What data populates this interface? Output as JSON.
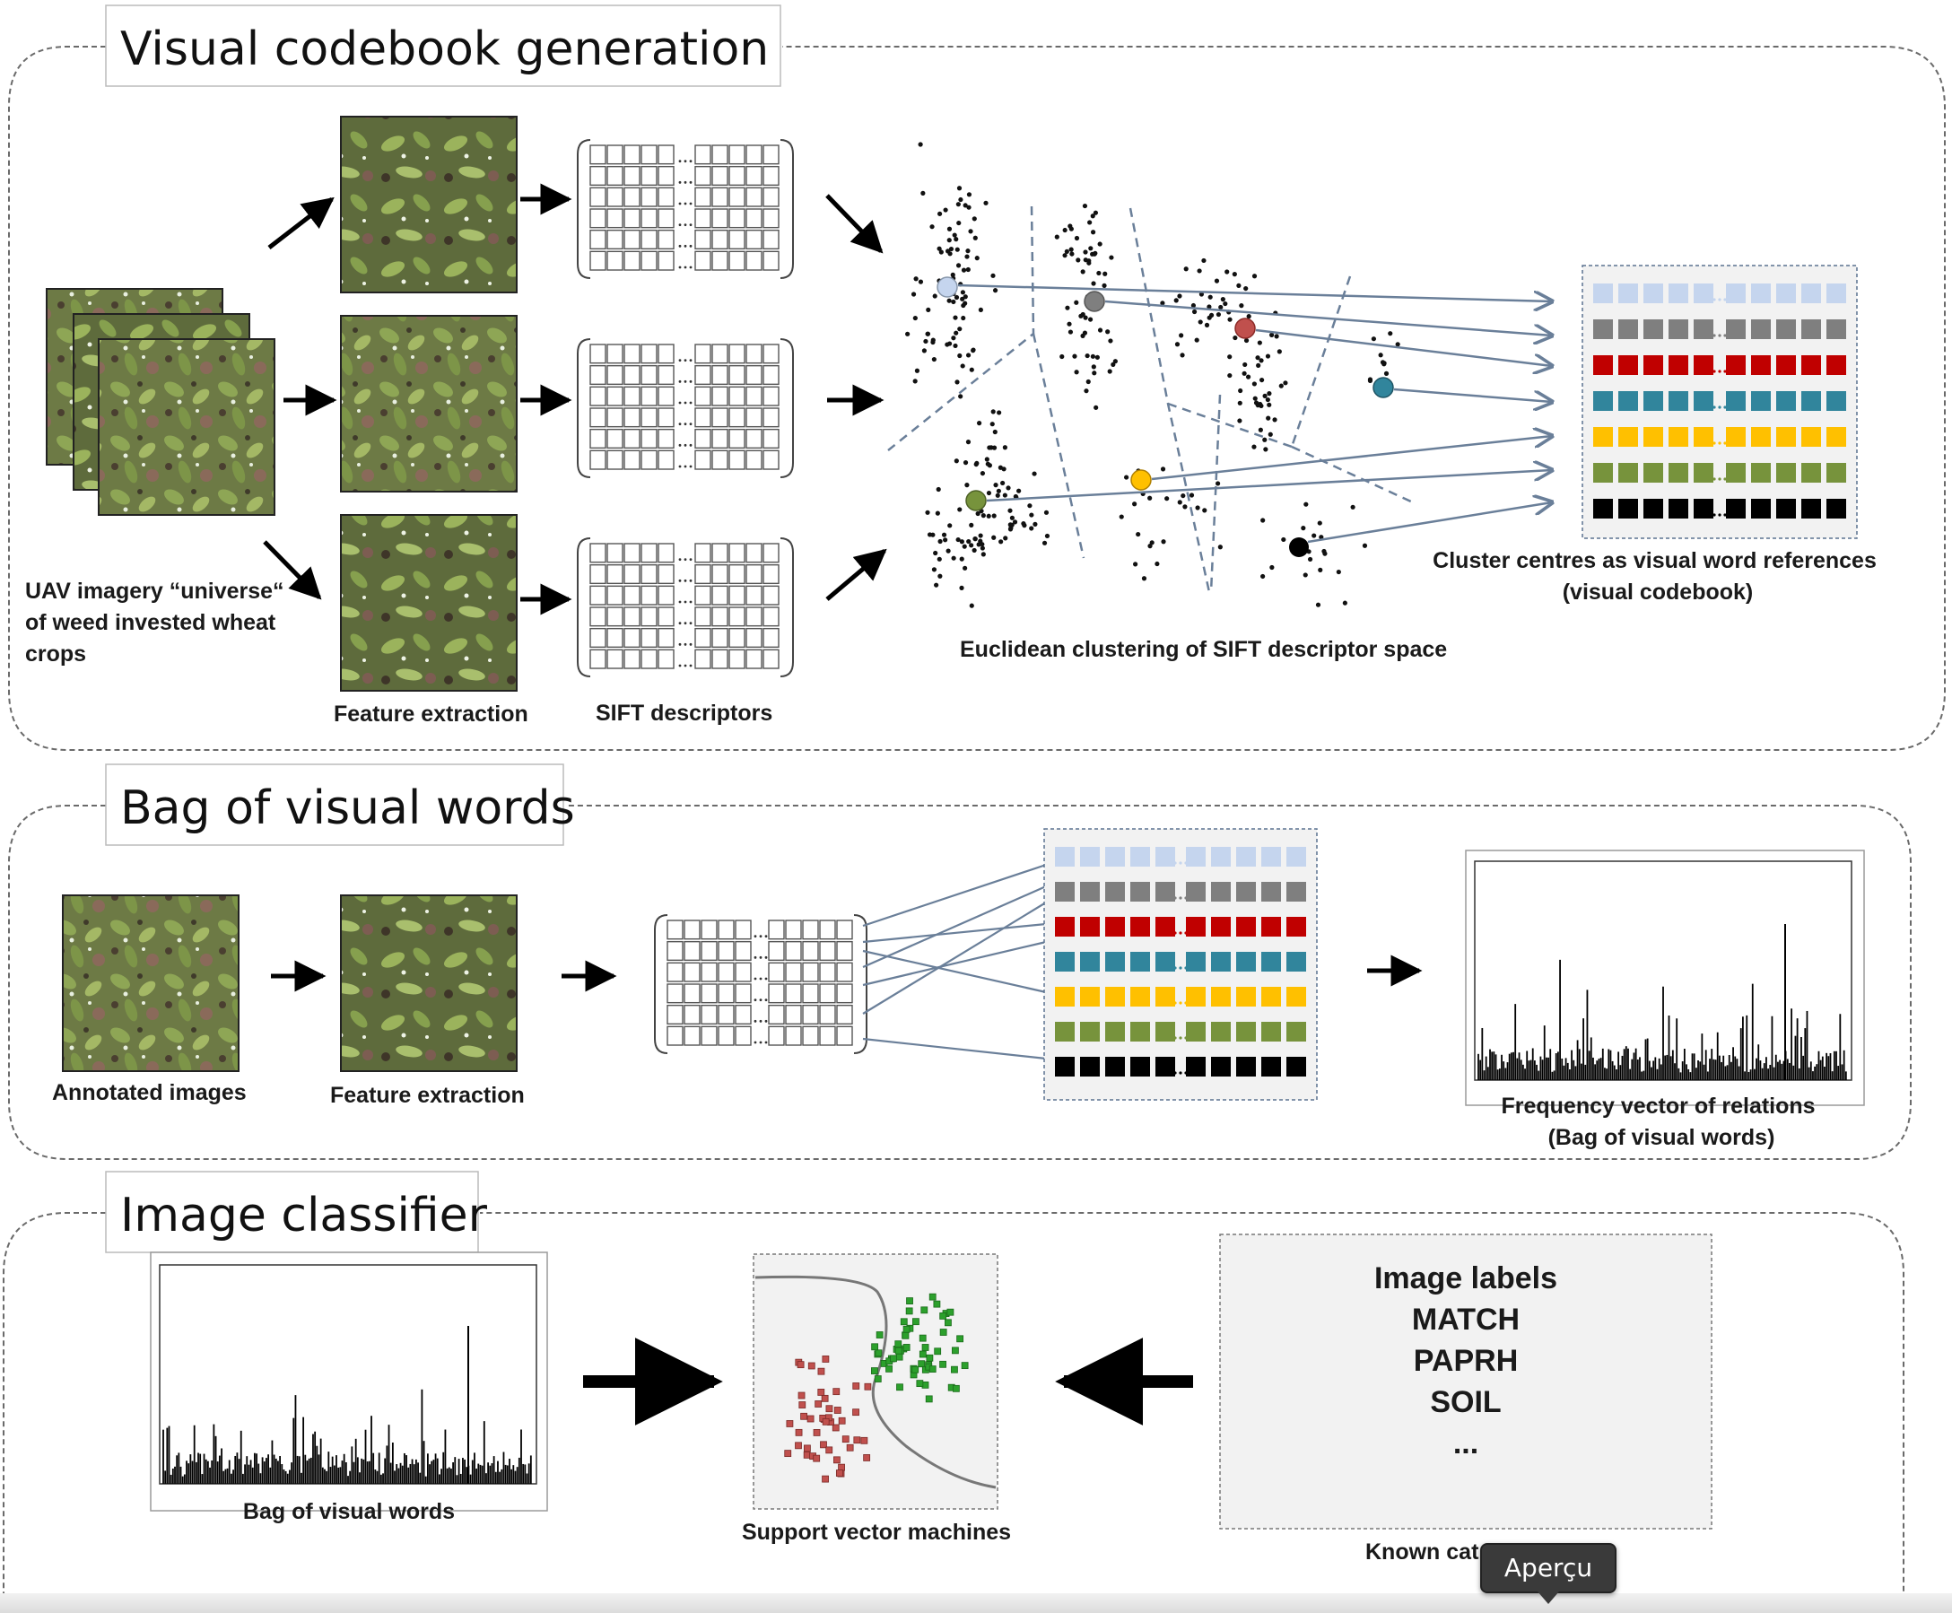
{
  "sections": {
    "codebook": {
      "title": "Visual codebook generation"
    },
    "bag": {
      "title": "Bag of visual words"
    },
    "classifier": {
      "title": "Image classifier"
    }
  },
  "codebook": {
    "uav_label_lines": [
      "UAV imagery “universe“",
      "of weed invested wheat",
      "crops"
    ],
    "feature_extraction": "Feature extraction",
    "sift_descriptors": "SIFT descriptors",
    "clustering_label": "Euclidean clustering of SIFT descriptor space",
    "codebook_label_lines": [
      "Cluster centres as visual word references",
      "(visual codebook)"
    ]
  },
  "bag": {
    "annotated_images": "Annotated images",
    "feature_extraction": "Feature extraction",
    "frequency_label_lines": [
      "Frequency vector of relations",
      "(Bag of visual words)"
    ]
  },
  "classifier": {
    "bag_label": "Bag of visual words",
    "svm_label": "Support vector machines",
    "labels_title": "Image labels",
    "labels": [
      "MATCH",
      "PAPRH",
      "SOIL",
      "..."
    ],
    "known_categories": "Known cat"
  },
  "codebook_colors": [
    "#c5d5ee",
    "#7f7f7f",
    "#c00000",
    "#31859c",
    "#ffc000",
    "#77933c",
    "#000000"
  ],
  "tooltip": "Aperçu"
}
